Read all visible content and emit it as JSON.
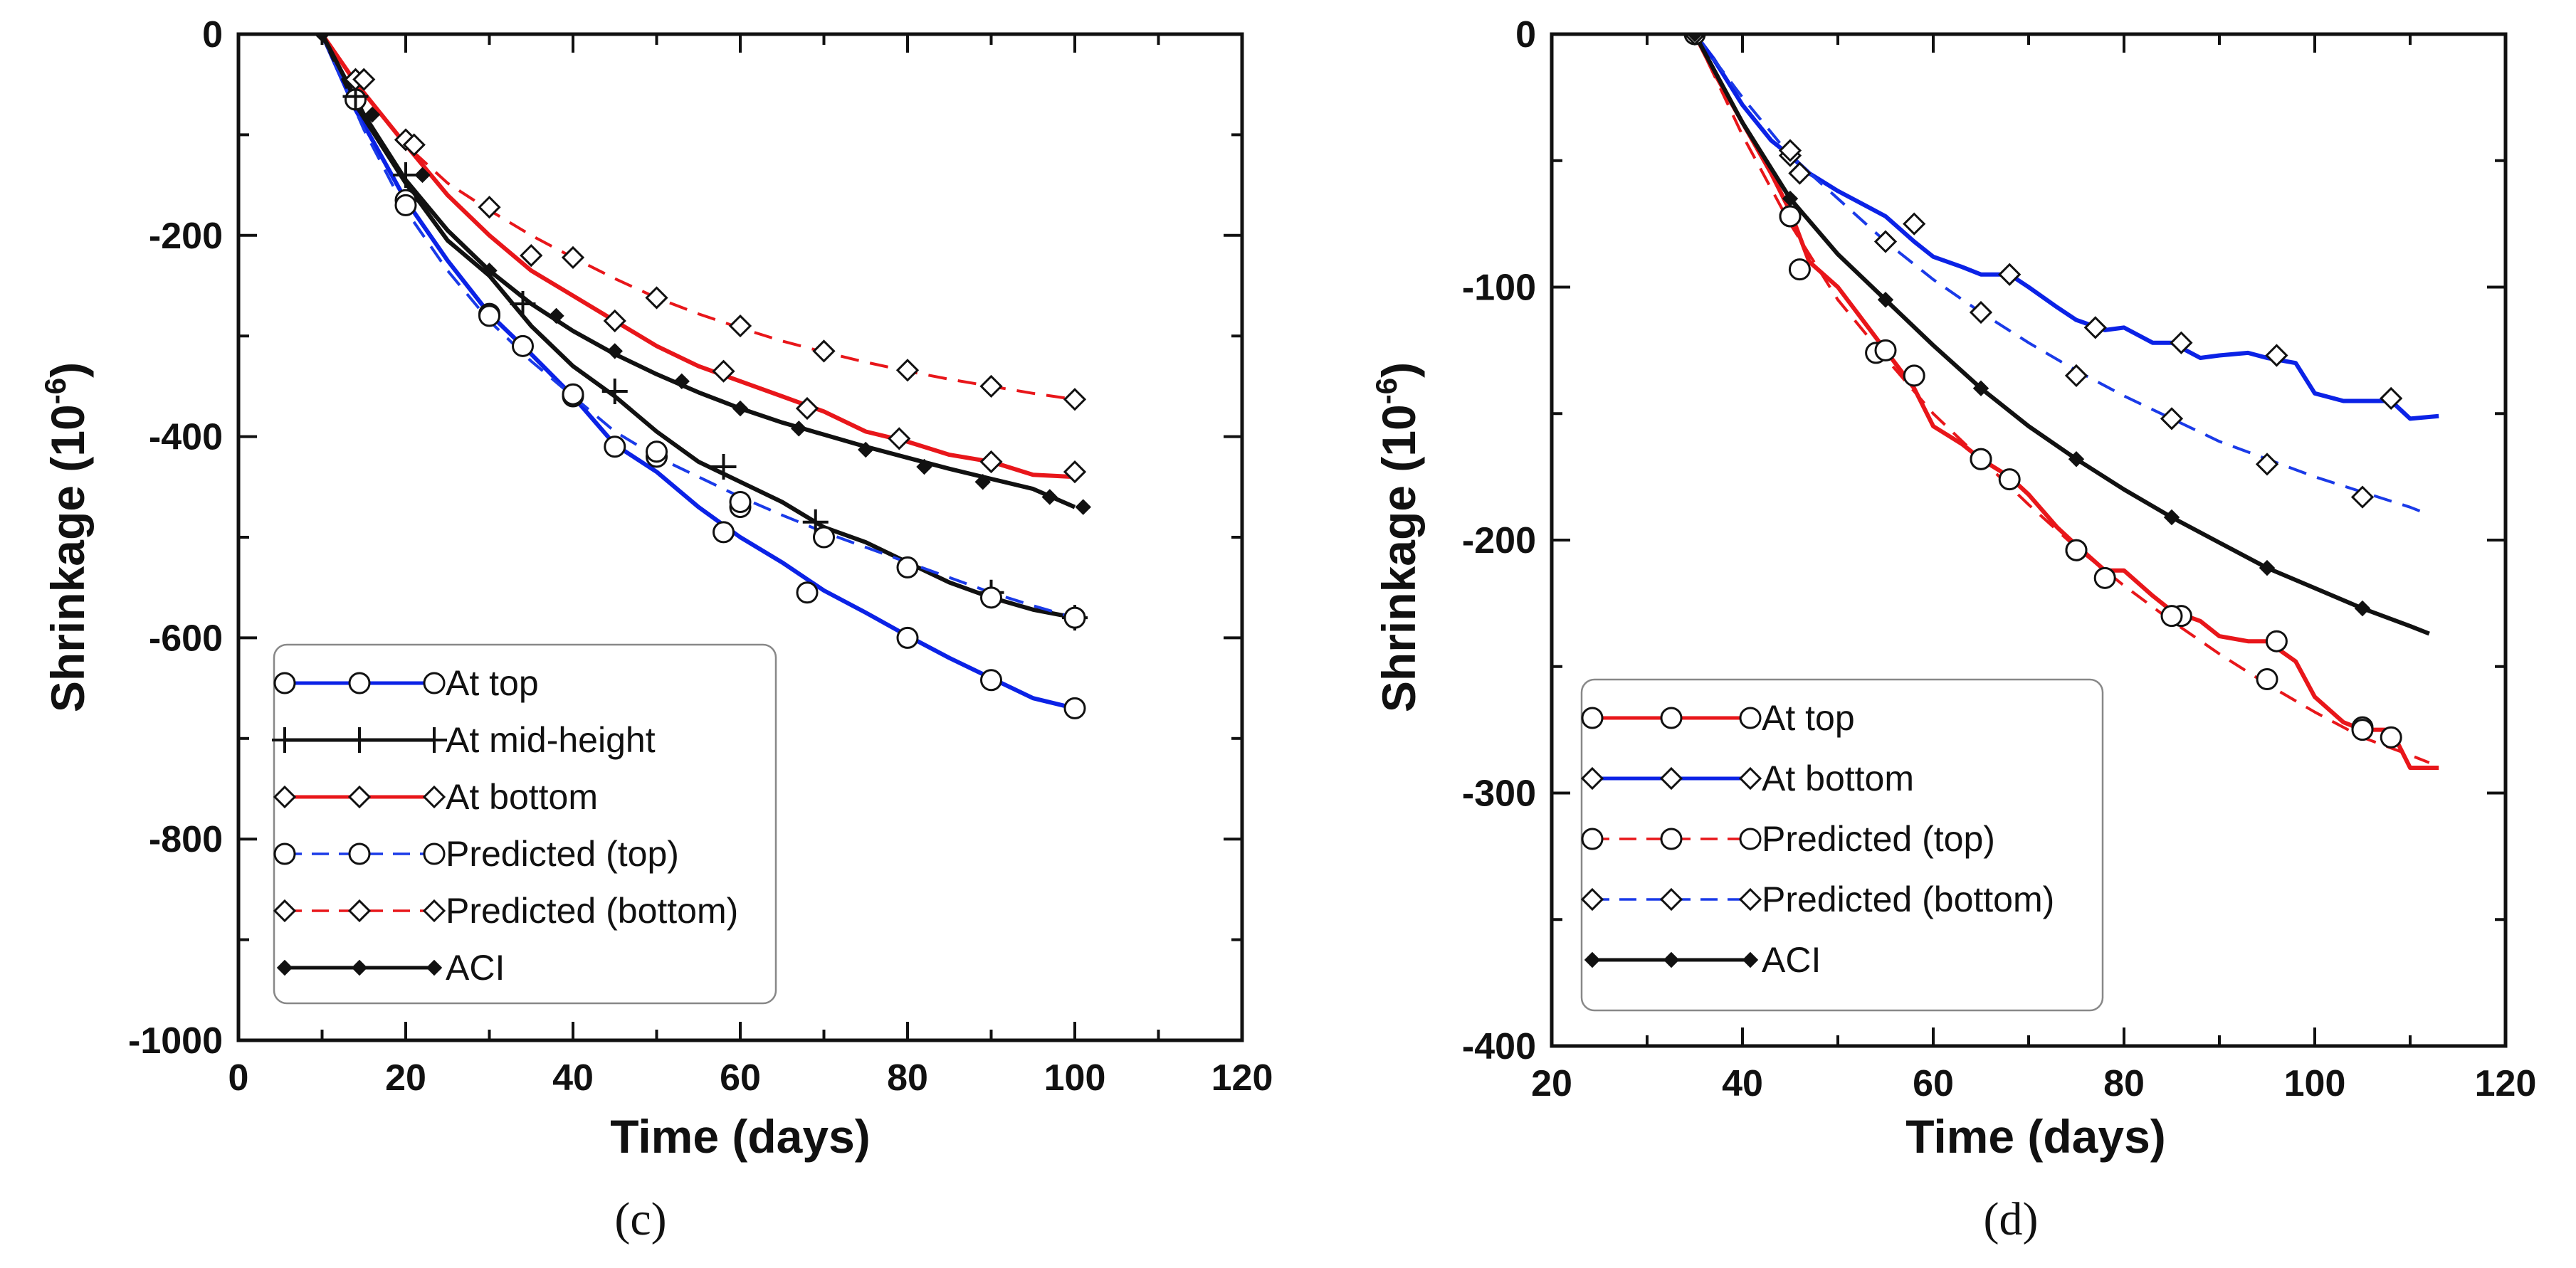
{
  "chart_data": [
    {
      "type": "line",
      "panel_label": "(c)",
      "xlabel": "Time (days)",
      "ylabel": "Shrinkage (10",
      "ylabel_exponent": "-6",
      "ylabel_close": ")",
      "xlim": [
        0,
        120
      ],
      "ylim": [
        -1000,
        0
      ],
      "xticks": [
        0,
        20,
        40,
        60,
        80,
        100,
        120
      ],
      "yticks": [
        0,
        -200,
        -400,
        -600,
        -800,
        -1000
      ],
      "legend_position": "bottom-left",
      "series": [
        {
          "name": "At top",
          "color": "#0b22e6",
          "dash": "solid",
          "marker": "circle",
          "x": [
            10,
            14,
            20,
            25,
            30,
            35,
            40,
            45,
            50,
            55,
            60,
            65,
            70,
            75,
            80,
            85,
            90,
            95,
            100
          ],
          "y": [
            0,
            -75,
            -165,
            -225,
            -278,
            -318,
            -360,
            -408,
            -435,
            -470,
            -500,
            -525,
            -553,
            -575,
            -598,
            -620,
            -640,
            -660,
            -670
          ],
          "markers_x": [
            14,
            20,
            30,
            34,
            40,
            45,
            50,
            58,
            60,
            68,
            80,
            90,
            100
          ],
          "markers_y": [
            -65,
            -165,
            -278,
            -310,
            -360,
            -410,
            -420,
            -495,
            -470,
            -555,
            -600,
            -642,
            -670
          ]
        },
        {
          "name": "At mid-height",
          "color": "#111111",
          "dash": "solid",
          "marker": "plus",
          "x": [
            10,
            14,
            20,
            25,
            30,
            35,
            40,
            45,
            50,
            55,
            60,
            65,
            70,
            75,
            80,
            85,
            90,
            95,
            100
          ],
          "y": [
            0,
            -70,
            -148,
            -205,
            -240,
            -290,
            -330,
            -360,
            -395,
            -425,
            -445,
            -465,
            -490,
            -505,
            -525,
            -545,
            -560,
            -572,
            -580
          ],
          "markers_x": [
            14,
            20,
            34,
            45,
            58,
            69,
            90,
            100
          ],
          "markers_y": [
            -62,
            -140,
            -268,
            -355,
            -430,
            -485,
            -555,
            -580
          ]
        },
        {
          "name": "At bottom",
          "color": "#e8161a",
          "dash": "solid",
          "marker": "diamond",
          "x": [
            10,
            14,
            20,
            25,
            30,
            35,
            40,
            45,
            50,
            55,
            60,
            65,
            70,
            75,
            80,
            85,
            90,
            95,
            100
          ],
          "y": [
            0,
            -48,
            -110,
            -160,
            -200,
            -235,
            -260,
            -285,
            -310,
            -330,
            -345,
            -360,
            -375,
            -395,
            -405,
            -418,
            -425,
            -438,
            -440
          ],
          "markers_x": [
            14,
            20,
            35,
            45,
            58,
            68,
            79,
            90,
            100
          ],
          "markers_y": [
            -45,
            -105,
            -220,
            -285,
            -335,
            -372,
            -402,
            -425,
            -435
          ]
        },
        {
          "name": "Predicted (top)",
          "color": "#1a3ae8",
          "dash": "dashed",
          "marker": "circle",
          "x": [
            10,
            15,
            20,
            25,
            30,
            35,
            40,
            45,
            50,
            55,
            60,
            65,
            70,
            75,
            80,
            85,
            90,
            95,
            100
          ],
          "y": [
            0,
            -95,
            -175,
            -235,
            -285,
            -325,
            -360,
            -395,
            -420,
            -440,
            -460,
            -478,
            -495,
            -510,
            -525,
            -540,
            -555,
            -568,
            -580
          ],
          "markers_x": [
            20,
            30,
            40,
            50,
            60,
            70,
            80,
            90,
            100
          ],
          "markers_y": [
            -170,
            -280,
            -358,
            -415,
            -465,
            -500,
            -530,
            -560,
            -580
          ]
        },
        {
          "name": "Predicted (bottom)",
          "color": "#e8161a",
          "dash": "dashed",
          "marker": "diamond",
          "x": [
            10,
            15,
            20,
            25,
            30,
            35,
            40,
            45,
            50,
            55,
            60,
            65,
            70,
            75,
            80,
            85,
            90,
            95,
            100
          ],
          "y": [
            0,
            -60,
            -110,
            -148,
            -175,
            -200,
            -222,
            -243,
            -262,
            -278,
            -292,
            -305,
            -316,
            -326,
            -335,
            -343,
            -350,
            -357,
            -363
          ],
          "markers_x": [
            15,
            21,
            30,
            40,
            50,
            60,
            70,
            80,
            90,
            100
          ],
          "markers_y": [
            -45,
            -110,
            -172,
            -222,
            -262,
            -290,
            -315,
            -334,
            -350,
            -363
          ]
        },
        {
          "name": "ACI",
          "color": "#111111",
          "dash": "solid",
          "marker": "filled-diamond",
          "x": [
            10,
            15,
            20,
            25,
            30,
            35,
            40,
            45,
            50,
            55,
            60,
            65,
            70,
            75,
            80,
            85,
            90,
            95,
            100
          ],
          "y": [
            0,
            -80,
            -145,
            -195,
            -235,
            -268,
            -295,
            -318,
            -338,
            -356,
            -372,
            -386,
            -398,
            -410,
            -421,
            -432,
            -442,
            -452,
            -470
          ],
          "markers_x": [
            10,
            16,
            22,
            30,
            38,
            45,
            53,
            60,
            67,
            75,
            82,
            89,
            97,
            101
          ],
          "markers_y": [
            0,
            -80,
            -140,
            -235,
            -280,
            -315,
            -345,
            -372,
            -392,
            -413,
            -430,
            -445,
            -460,
            -470
          ]
        }
      ]
    },
    {
      "type": "line",
      "panel_label": "(d)",
      "xlabel": "Time (days)",
      "ylabel": "Shrinkage (10",
      "ylabel_exponent": "-6",
      "ylabel_close": ")",
      "xlim": [
        20,
        120
      ],
      "ylim": [
        -400,
        0
      ],
      "xticks": [
        20,
        40,
        60,
        80,
        100,
        120
      ],
      "yticks": [
        0,
        -100,
        -200,
        -300,
        -400
      ],
      "legend_position": "bottom-left",
      "series": [
        {
          "name": "At top",
          "color": "#e8161a",
          "dash": "solid",
          "marker": "circle",
          "x": [
            35,
            37,
            40,
            43,
            45,
            47,
            50,
            53,
            55,
            58,
            60,
            63,
            65,
            68,
            70,
            73,
            75,
            78,
            80,
            83,
            85,
            88,
            90,
            93,
            95,
            98,
            100,
            103,
            105,
            108,
            110,
            113
          ],
          "y": [
            0,
            -15,
            -35,
            -55,
            -70,
            -90,
            -100,
            -115,
            -125,
            -140,
            -155,
            -162,
            -168,
            -175,
            -182,
            -195,
            -202,
            -212,
            -212,
            -222,
            -228,
            -232,
            -238,
            -240,
            -240,
            -248,
            -262,
            -272,
            -275,
            -275,
            -290,
            -290
          ],
          "markers_x": [
            35,
            45,
            46,
            54,
            58,
            65,
            68,
            75,
            78,
            86,
            96,
            105,
            108
          ],
          "markers_y": [
            0,
            -72,
            -93,
            -126,
            -135,
            -168,
            -176,
            -204,
            -215,
            -230,
            -240,
            -274,
            -278
          ]
        },
        {
          "name": "At bottom",
          "color": "#0b22e6",
          "dash": "solid",
          "marker": "diamond",
          "x": [
            35,
            37,
            40,
            43,
            45,
            47,
            50,
            53,
            55,
            58,
            60,
            63,
            65,
            68,
            70,
            73,
            75,
            78,
            80,
            83,
            85,
            88,
            90,
            93,
            95,
            98,
            100,
            103,
            105,
            108,
            110,
            113
          ],
          "y": [
            0,
            -10,
            -28,
            -42,
            -48,
            -55,
            -62,
            -68,
            -72,
            -82,
            -88,
            -92,
            -95,
            -95,
            -100,
            -108,
            -113,
            -117,
            -116,
            -122,
            -122,
            -128,
            -127,
            -126,
            -128,
            -130,
            -142,
            -145,
            -145,
            -145,
            -152,
            -151
          ],
          "markers_x": [
            35,
            45,
            46,
            58,
            68,
            77,
            86,
            96,
            108
          ],
          "markers_y": [
            0,
            -48,
            -55,
            -75,
            -95,
            -116,
            -122,
            -127,
            -144
          ]
        },
        {
          "name": "Predicted (top)",
          "color": "#e8161a",
          "dash": "dashed",
          "marker": "circle",
          "x": [
            35,
            40,
            45,
            50,
            55,
            60,
            65,
            70,
            75,
            80,
            85,
            90,
            95,
            100,
            105,
            110,
            112
          ],
          "y": [
            0,
            -40,
            -75,
            -105,
            -128,
            -150,
            -168,
            -186,
            -203,
            -218,
            -232,
            -245,
            -257,
            -268,
            -278,
            -285,
            -288
          ],
          "markers_x": [
            45,
            55,
            65,
            75,
            85,
            95,
            105
          ],
          "markers_y": [
            -72,
            -125,
            -168,
            -204,
            -230,
            -255,
            -275
          ]
        },
        {
          "name": "Predicted (bottom)",
          "color": "#1a3ae8",
          "dash": "dashed",
          "marker": "diamond",
          "x": [
            35,
            40,
            45,
            50,
            55,
            60,
            65,
            70,
            75,
            80,
            85,
            90,
            95,
            100,
            105,
            110,
            112
          ],
          "y": [
            0,
            -25,
            -48,
            -65,
            -82,
            -97,
            -110,
            -122,
            -133,
            -143,
            -152,
            -161,
            -168,
            -175,
            -181,
            -187,
            -190
          ],
          "markers_x": [
            45,
            55,
            65,
            75,
            85,
            95,
            105
          ],
          "markers_y": [
            -46,
            -82,
            -110,
            -135,
            -152,
            -170,
            -183
          ]
        },
        {
          "name": "ACI",
          "color": "#111111",
          "dash": "solid",
          "marker": "filled-diamond",
          "x": [
            35,
            40,
            45,
            50,
            55,
            60,
            65,
            70,
            75,
            80,
            85,
            90,
            95,
            100,
            105,
            110,
            112
          ],
          "y": [
            0,
            -35,
            -65,
            -87,
            -105,
            -123,
            -140,
            -155,
            -168,
            -180,
            -191,
            -201,
            -211,
            -219,
            -227,
            -234,
            -237
          ],
          "markers_x": [
            35,
            45,
            55,
            65,
            75,
            85,
            95,
            105
          ],
          "markers_y": [
            0,
            -65,
            -105,
            -140,
            -168,
            -191,
            -211,
            -227
          ]
        }
      ]
    }
  ]
}
